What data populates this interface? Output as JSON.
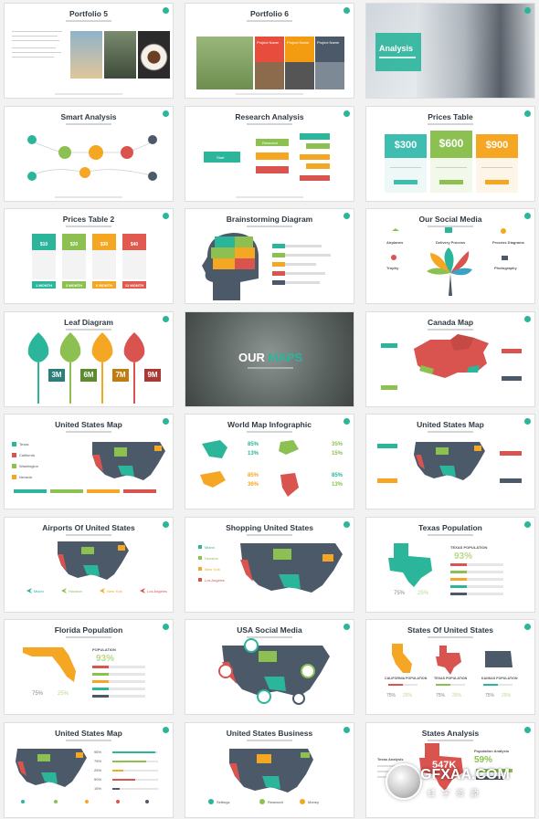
{
  "slides": {
    "s1": {
      "title": "Portfolio 5"
    },
    "s2": {
      "title": "Portfolio 6",
      "project_labels": [
        "Project Name",
        "Project Name",
        "Project Name"
      ]
    },
    "s3": {
      "title": "Analysis"
    },
    "s4": {
      "title": "Smart Analysis"
    },
    "s5": {
      "title": "Research Analysis",
      "start": "Start",
      "research": "Research"
    },
    "s6": {
      "title": "Prices Table",
      "prices": [
        "$300",
        "$600",
        "$900"
      ]
    },
    "s7": {
      "title": "Prices Table 2",
      "prices": [
        "$10",
        "$20",
        "$30",
        "$40"
      ],
      "durations": [
        "1 MONTH",
        "2 MONTH",
        "6 MONTH",
        "12 MONTH"
      ]
    },
    "s8": {
      "title": "Brainstorming Diagram"
    },
    "s9": {
      "title": "Our Social Media",
      "labels": [
        "Airplanes",
        "Delivery Process",
        "Process Diagrams",
        "Trophy",
        "Photography"
      ]
    },
    "s10": {
      "title": "Leaf Diagram",
      "values": [
        "3M",
        "6M",
        "7M",
        "9M"
      ]
    },
    "s11": {
      "title_a": "OUR",
      "title_b": "MAPS"
    },
    "s12": {
      "title": "Canada Map"
    },
    "s13": {
      "title": "United States Map",
      "labels": [
        "Texas",
        "California",
        "Washington",
        "Nevada"
      ]
    },
    "s14": {
      "title": "World Map Infographic",
      "stats": [
        "85%",
        "13%",
        "35%",
        "15%",
        "85%",
        "36%",
        "85%",
        "13%"
      ]
    },
    "s15": {
      "title": "United States Map"
    },
    "s16": {
      "title": "Airports Of United States",
      "cities": [
        "Miami",
        "Houston",
        "New York",
        "Los Angeles"
      ]
    },
    "s17": {
      "title": "Shopping United States",
      "cities": [
        "Miami",
        "Houston",
        "New York",
        "Los Angeles"
      ]
    },
    "s18": {
      "title": "Texas Population",
      "pop_label": "TEXAS POPULATION",
      "pop_value": "93%",
      "small": [
        "75%",
        "25%"
      ]
    },
    "s19": {
      "title": "Florida Population",
      "pop_label": "POPULATION",
      "pop_value": "93%",
      "small": [
        "75%",
        "25%"
      ]
    },
    "s20": {
      "title": "USA Social Media"
    },
    "s21": {
      "title": "States Of United States",
      "labels": [
        "CALIFORNIA POPULATION",
        "TEXAS POPULATION",
        "KANSAS POPULATION"
      ],
      "small": [
        "75%",
        "25%",
        "75%",
        "25%",
        "75%",
        "25%"
      ]
    },
    "s22": {
      "title": "United States Map",
      "percents": [
        "95%",
        "75%",
        "25%",
        "50%",
        "15%"
      ]
    },
    "s23": {
      "title": "United States Business",
      "labels": [
        "Settings",
        "Research",
        "Money"
      ]
    },
    "s24": {
      "title": "States Analysis",
      "stat_a_label": "Texas Analysis",
      "stat_a": "547K",
      "stat_b_label": "Population Analysis",
      "stat_b": "59%"
    }
  },
  "watermark": {
    "text": "GFXAA.COM",
    "sub": "红 字 资 源"
  },
  "colors": {
    "teal": "#2bb59b",
    "green": "#8cc152",
    "orange": "#f5a623",
    "red": "#d9534f",
    "slate": "#4b5968",
    "blue": "#3aa3c4"
  }
}
